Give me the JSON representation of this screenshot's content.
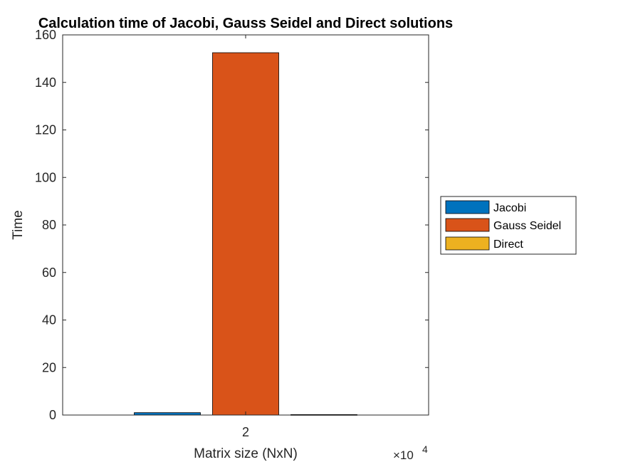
{
  "chart_data": {
    "type": "bar",
    "title": "Calculation time of Jacobi, Gauss Seidel and Direct solutions",
    "xlabel": "Matrix size (NxN)",
    "ylabel": "Time",
    "categories": [
      "2"
    ],
    "x_multiplier": {
      "base": "×10",
      "exponent": "4"
    },
    "ylim": [
      0,
      160
    ],
    "yticks": [
      "0",
      "20",
      "40",
      "60",
      "80",
      "100",
      "120",
      "140",
      "160"
    ],
    "legend_position": "right-outside",
    "grid": false,
    "series": [
      {
        "name": "Jacobi",
        "values": [
          1.0
        ],
        "color": "#0072BD"
      },
      {
        "name": "Gauss Seidel",
        "values": [
          152.5
        ],
        "color": "#D95319"
      },
      {
        "name": "Direct",
        "values": [
          0.2
        ],
        "color": "#EDB120"
      }
    ]
  }
}
